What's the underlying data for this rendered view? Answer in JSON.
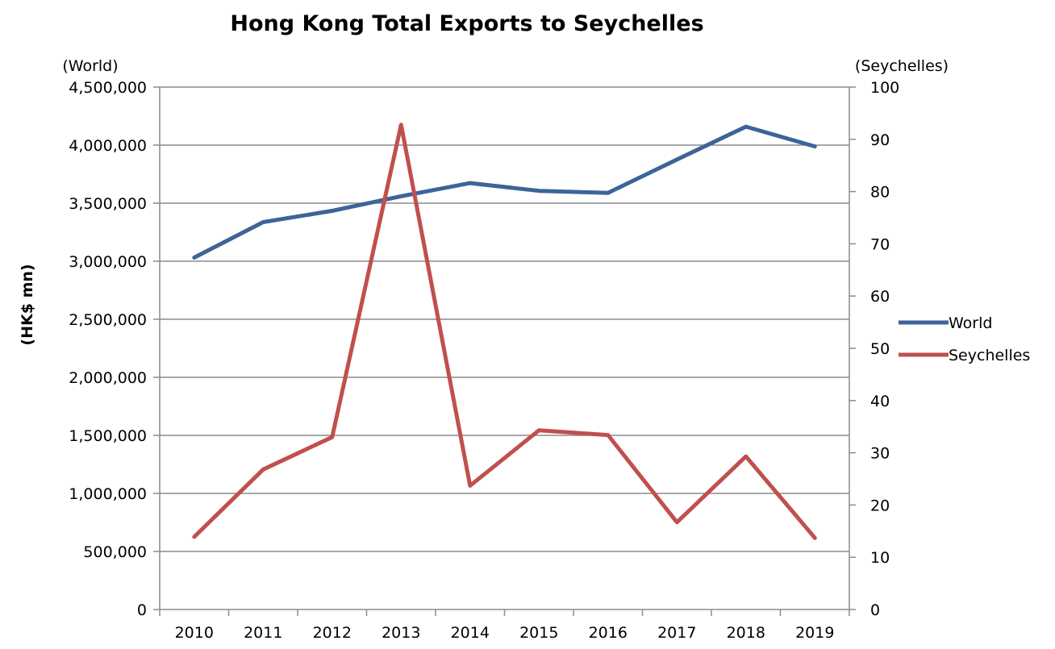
{
  "chart_data": {
    "type": "line",
    "title": "Hong Kong Total Exports to Seychelles",
    "ylabel": "(HK$ mn)",
    "left_axis_title": "(World)",
    "right_axis_title": "(Seychelles)",
    "x": [
      "2010",
      "2011",
      "2012",
      "2013",
      "2014",
      "2015",
      "2016",
      "2017",
      "2018",
      "2019"
    ],
    "y_left_ticks": [
      "0",
      "500,000",
      "1,000,000",
      "1,500,000",
      "2,000,000",
      "2,500,000",
      "3,000,000",
      "3,500,000",
      "4,000,000",
      "4,500,000"
    ],
    "y_left_lim": [
      0,
      4500000
    ],
    "y_right_ticks": [
      "0",
      "10",
      "20",
      "30",
      "40",
      "50",
      "60",
      "70",
      "80",
      "90",
      "100"
    ],
    "y_right_lim": [
      0,
      100
    ],
    "grid": true,
    "legend": "right",
    "series": [
      {
        "name": "World",
        "axis": "left",
        "color": "#3c6499",
        "values": [
          3031000,
          3337000,
          3434000,
          3560000,
          3673000,
          3606000,
          3589000,
          3876000,
          4159000,
          3989000
        ]
      },
      {
        "name": "Seychelles",
        "axis": "right",
        "color": "#c0504d",
        "values": [
          13.9,
          26.8,
          33.0,
          92.8,
          23.7,
          34.3,
          33.4,
          16.7,
          29.3,
          13.7
        ]
      }
    ]
  }
}
